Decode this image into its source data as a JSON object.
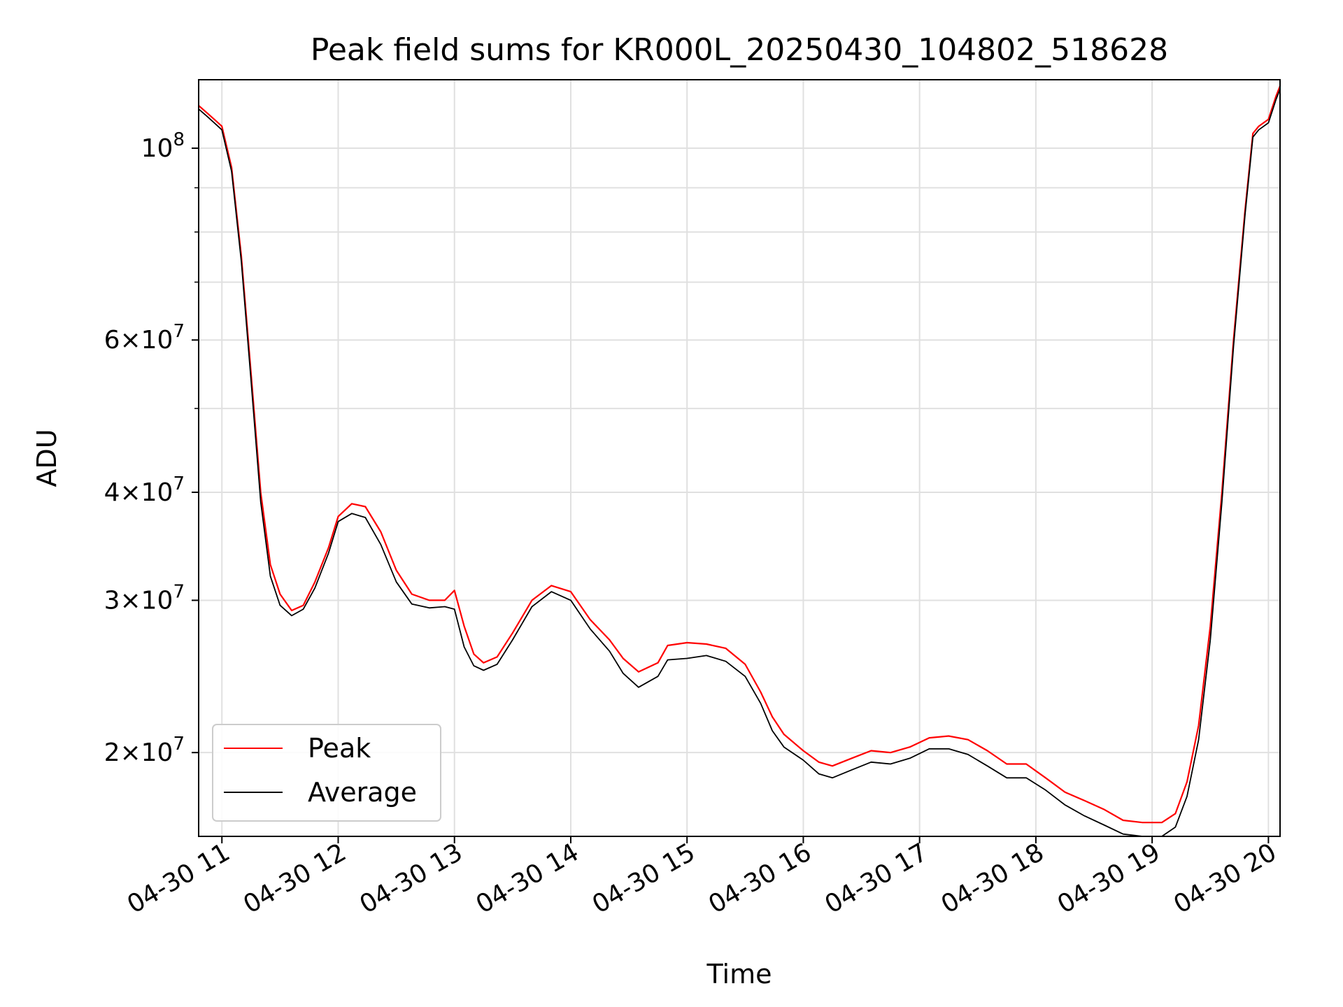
{
  "chart_data": {
    "type": "line",
    "title": "Peak field sums for KR000L_20250430_104802_518628",
    "xlabel": "Time",
    "ylabel": "ADU",
    "yscale": "log",
    "grid": true,
    "legend_position": "lower-left",
    "xlim": [
      "2025-04-30 10:48",
      "2025-04-30 20:06"
    ],
    "ylim": [
      16000000,
      120000000
    ],
    "x_ticks": [
      {
        "value": "2025-04-30 11:00",
        "label": "04-30 11"
      },
      {
        "value": "2025-04-30 12:00",
        "label": "04-30 12"
      },
      {
        "value": "2025-04-30 13:00",
        "label": "04-30 13"
      },
      {
        "value": "2025-04-30 14:00",
        "label": "04-30 14"
      },
      {
        "value": "2025-04-30 15:00",
        "label": "04-30 15"
      },
      {
        "value": "2025-04-30 16:00",
        "label": "04-30 16"
      },
      {
        "value": "2025-04-30 17:00",
        "label": "04-30 17"
      },
      {
        "value": "2025-04-30 18:00",
        "label": "04-30 18"
      },
      {
        "value": "2025-04-30 19:00",
        "label": "04-30 19"
      },
      {
        "value": "2025-04-30 20:00",
        "label": "04-30 20"
      }
    ],
    "y_major_ticks": [
      {
        "value": 100000000,
        "mantissa": "",
        "exponent": "8"
      },
      {
        "value": 60000000,
        "mantissa": "6",
        "exponent": "7"
      },
      {
        "value": 40000000,
        "mantissa": "4",
        "exponent": "7"
      },
      {
        "value": 30000000,
        "mantissa": "3",
        "exponent": "7"
      },
      {
        "value": 20000000,
        "mantissa": "2",
        "exponent": "7"
      }
    ],
    "y_minor_ticks": [
      50000000,
      70000000,
      80000000,
      90000000
    ],
    "series": [
      {
        "name": "Peak",
        "color": "#ff0000",
        "x": [
          "2025-04-30 10:48",
          "2025-04-30 10:52",
          "2025-04-30 10:56",
          "2025-04-30 11:00",
          "2025-04-30 11:05",
          "2025-04-30 11:10",
          "2025-04-30 11:15",
          "2025-04-30 11:20",
          "2025-04-30 11:25",
          "2025-04-30 11:30",
          "2025-04-30 11:36",
          "2025-04-30 11:42",
          "2025-04-30 11:48",
          "2025-04-30 11:55",
          "2025-04-30 12:00",
          "2025-04-30 12:07",
          "2025-04-30 12:14",
          "2025-04-30 12:22",
          "2025-04-30 12:30",
          "2025-04-30 12:38",
          "2025-04-30 12:47",
          "2025-04-30 12:55",
          "2025-04-30 13:00",
          "2025-04-30 13:05",
          "2025-04-30 13:10",
          "2025-04-30 13:15",
          "2025-04-30 13:22",
          "2025-04-30 13:30",
          "2025-04-30 13:40",
          "2025-04-30 13:50",
          "2025-04-30 14:00",
          "2025-04-30 14:10",
          "2025-04-30 14:20",
          "2025-04-30 14:27",
          "2025-04-30 14:35",
          "2025-04-30 14:45",
          "2025-04-30 14:50",
          "2025-04-30 15:00",
          "2025-04-30 15:10",
          "2025-04-30 15:20",
          "2025-04-30 15:30",
          "2025-04-30 15:38",
          "2025-04-30 15:44",
          "2025-04-30 15:50",
          "2025-04-30 16:00",
          "2025-04-30 16:08",
          "2025-04-30 16:15",
          "2025-04-30 16:25",
          "2025-04-30 16:35",
          "2025-04-30 16:45",
          "2025-04-30 16:55",
          "2025-04-30 17:05",
          "2025-04-30 17:15",
          "2025-04-30 17:25",
          "2025-04-30 17:35",
          "2025-04-30 17:45",
          "2025-04-30 17:55",
          "2025-04-30 18:05",
          "2025-04-30 18:15",
          "2025-04-30 18:25",
          "2025-04-30 18:35",
          "2025-04-30 18:45",
          "2025-04-30 18:55",
          "2025-04-30 19:05",
          "2025-04-30 19:12",
          "2025-04-30 19:18",
          "2025-04-30 19:24",
          "2025-04-30 19:30",
          "2025-04-30 19:36",
          "2025-04-30 19:42",
          "2025-04-30 19:48",
          "2025-04-30 19:52",
          "2025-04-30 19:55",
          "2025-04-30 20:00",
          "2025-04-30 20:04",
          "2025-04-30 20:06"
        ],
        "y": [
          112000000,
          110000000,
          108000000,
          106000000,
          95000000,
          75000000,
          55000000,
          40000000,
          33000000,
          30500000,
          29200000,
          29600000,
          31500000,
          34500000,
          37500000,
          38800000,
          38500000,
          36000000,
          32500000,
          30500000,
          30000000,
          30000000,
          30800000,
          28000000,
          26000000,
          25400000,
          25800000,
          27500000,
          30000000,
          31200000,
          30700000,
          28500000,
          27000000,
          25700000,
          24800000,
          25400000,
          26600000,
          26800000,
          26700000,
          26400000,
          25300000,
          23500000,
          22000000,
          21000000,
          20100000,
          19500000,
          19300000,
          19700000,
          20100000,
          20000000,
          20300000,
          20800000,
          20900000,
          20700000,
          20100000,
          19400000,
          19400000,
          18700000,
          18000000,
          17600000,
          17200000,
          16700000,
          16600000,
          16600000,
          17000000,
          18500000,
          21500000,
          28000000,
          40000000,
          60000000,
          85000000,
          104000000,
          106000000,
          108000000,
          115000000,
          118000000
        ]
      },
      {
        "name": "Average",
        "color": "#000000",
        "x": [
          "2025-04-30 10:48",
          "2025-04-30 10:52",
          "2025-04-30 10:56",
          "2025-04-30 11:00",
          "2025-04-30 11:05",
          "2025-04-30 11:10",
          "2025-04-30 11:15",
          "2025-04-30 11:20",
          "2025-04-30 11:25",
          "2025-04-30 11:30",
          "2025-04-30 11:36",
          "2025-04-30 11:42",
          "2025-04-30 11:48",
          "2025-04-30 11:55",
          "2025-04-30 12:00",
          "2025-04-30 12:07",
          "2025-04-30 12:14",
          "2025-04-30 12:22",
          "2025-04-30 12:30",
          "2025-04-30 12:38",
          "2025-04-30 12:47",
          "2025-04-30 12:55",
          "2025-04-30 13:00",
          "2025-04-30 13:05",
          "2025-04-30 13:10",
          "2025-04-30 13:15",
          "2025-04-30 13:22",
          "2025-04-30 13:30",
          "2025-04-30 13:40",
          "2025-04-30 13:50",
          "2025-04-30 14:00",
          "2025-04-30 14:10",
          "2025-04-30 14:20",
          "2025-04-30 14:27",
          "2025-04-30 14:35",
          "2025-04-30 14:45",
          "2025-04-30 14:50",
          "2025-04-30 15:00",
          "2025-04-30 15:10",
          "2025-04-30 15:20",
          "2025-04-30 15:30",
          "2025-04-30 15:38",
          "2025-04-30 15:44",
          "2025-04-30 15:50",
          "2025-04-30 16:00",
          "2025-04-30 16:08",
          "2025-04-30 16:15",
          "2025-04-30 16:25",
          "2025-04-30 16:35",
          "2025-04-30 16:45",
          "2025-04-30 16:55",
          "2025-04-30 17:05",
          "2025-04-30 17:15",
          "2025-04-30 17:25",
          "2025-04-30 17:35",
          "2025-04-30 17:45",
          "2025-04-30 17:55",
          "2025-04-30 18:05",
          "2025-04-30 18:15",
          "2025-04-30 18:25",
          "2025-04-30 18:35",
          "2025-04-30 18:45",
          "2025-04-30 18:55",
          "2025-04-30 19:05",
          "2025-04-30 19:12",
          "2025-04-30 19:18",
          "2025-04-30 19:24",
          "2025-04-30 19:30",
          "2025-04-30 19:36",
          "2025-04-30 19:42",
          "2025-04-30 19:48",
          "2025-04-30 19:52",
          "2025-04-30 19:55",
          "2025-04-30 20:00",
          "2025-04-30 20:04",
          "2025-04-30 20:06"
        ],
        "y": [
          111000000,
          109000000,
          107000000,
          105000000,
          94000000,
          74000000,
          54000000,
          39000000,
          32000000,
          29600000,
          28800000,
          29300000,
          31000000,
          34000000,
          37000000,
          37800000,
          37400000,
          34800000,
          31500000,
          29700000,
          29400000,
          29500000,
          29300000,
          26500000,
          25200000,
          24900000,
          25300000,
          27000000,
          29500000,
          30700000,
          30000000,
          27800000,
          26200000,
          24700000,
          23800000,
          24500000,
          25600000,
          25700000,
          25900000,
          25500000,
          24500000,
          22800000,
          21200000,
          20300000,
          19600000,
          18900000,
          18700000,
          19100000,
          19500000,
          19400000,
          19700000,
          20200000,
          20200000,
          19900000,
          19300000,
          18700000,
          18700000,
          18100000,
          17400000,
          16900000,
          16500000,
          16100000,
          16000000,
          16000000,
          16400000,
          17800000,
          20700000,
          27000000,
          39000000,
          59000000,
          84000000,
          103000000,
          105000000,
          107000000,
          114000000,
          117000000
        ]
      }
    ]
  }
}
